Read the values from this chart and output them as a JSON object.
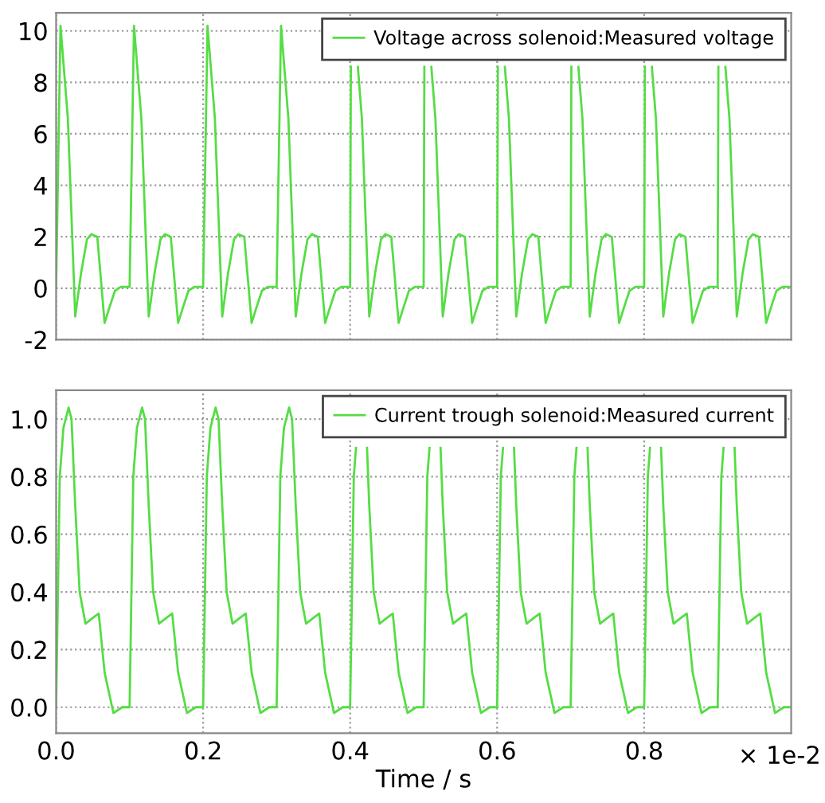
{
  "chart_data": [
    {
      "type": "line",
      "xlim": [
        0,
        1.0
      ],
      "ylim": [
        -2,
        10.7
      ],
      "xticks": [
        0,
        0.2,
        0.4,
        0.6,
        0.8
      ],
      "yticks": [
        -2,
        0,
        2,
        4,
        6,
        8,
        10
      ],
      "tick_labels": "y",
      "grid": true,
      "legend": "top right",
      "marker": "none",
      "line_style": "solid",
      "series": [
        {
          "name": "Voltage across solenoid:Measured voltage",
          "color": "#55dd44",
          "x": [
            0,
            0.006,
            0.016,
            0.026,
            0.034,
            0.042,
            0.048,
            0.056,
            0.066,
            0.072,
            0.08,
            0.088,
            0.098,
            0.1,
            0.106,
            0.116,
            0.126,
            0.134,
            0.142,
            0.148,
            0.156,
            0.166,
            0.172,
            0.18,
            0.188,
            0.198,
            0.2,
            0.206,
            0.216,
            0.226,
            0.234,
            0.242,
            0.248,
            0.256,
            0.266,
            0.272,
            0.28,
            0.288,
            0.298,
            0.3,
            0.306,
            0.316,
            0.326,
            0.334,
            0.342,
            0.348,
            0.356,
            0.366,
            0.372,
            0.38,
            0.388,
            0.398,
            0.4,
            0.401,
            0.406,
            0.4105,
            0.416,
            0.426,
            0.434,
            0.442,
            0.448,
            0.456,
            0.466,
            0.472,
            0.48,
            0.488,
            0.498,
            0.5,
            0.501,
            0.506,
            0.5105,
            0.516,
            0.526,
            0.534,
            0.542,
            0.548,
            0.556,
            0.566,
            0.572,
            0.58,
            0.588,
            0.598,
            0.6,
            0.601,
            0.606,
            0.6105,
            0.616,
            0.626,
            0.634,
            0.642,
            0.648,
            0.656,
            0.666,
            0.672,
            0.68,
            0.688,
            0.698,
            0.7,
            0.701,
            0.706,
            0.7105,
            0.716,
            0.726,
            0.734,
            0.742,
            0.748,
            0.756,
            0.766,
            0.772,
            0.78,
            0.788,
            0.798,
            0.8,
            0.801,
            0.806,
            0.8105,
            0.816,
            0.826,
            0.834,
            0.842,
            0.848,
            0.856,
            0.866,
            0.872,
            0.88,
            0.888,
            0.898,
            0.9,
            0.901,
            0.906,
            0.9105,
            0.916,
            0.926,
            0.934,
            0.942,
            0.948,
            0.956,
            0.966,
            0.972,
            0.98,
            0.988,
            0.998
          ],
          "values": [
            0,
            10.2,
            6.6,
            -1.1,
            0.6,
            1.9,
            2.1,
            2.0,
            -1.35,
            -0.8,
            -0.1,
            0.05,
            0.05,
            0.05,
            10.2,
            6.6,
            -1.1,
            0.6,
            1.9,
            2.1,
            2.0,
            -1.35,
            -0.8,
            -0.1,
            0.05,
            0.05,
            0.05,
            10.2,
            6.6,
            -1.1,
            0.6,
            1.9,
            2.1,
            2.0,
            -1.35,
            -0.8,
            -0.1,
            0.05,
            0.05,
            0.05,
            10.2,
            6.6,
            -1.1,
            0.6,
            1.9,
            2.1,
            2.0,
            -1.35,
            -0.8,
            -0.1,
            0.05,
            0.05,
            0.05,
            8.6,
            null,
            8.6,
            6.6,
            -1.1,
            0.6,
            1.9,
            2.1,
            2.0,
            -1.35,
            -0.8,
            -0.1,
            0.05,
            0.05,
            0.05,
            8.6,
            null,
            8.6,
            6.6,
            -1.1,
            0.6,
            1.9,
            2.1,
            2.0,
            -1.35,
            -0.8,
            -0.1,
            0.05,
            0.05,
            0.05,
            8.6,
            null,
            8.6,
            6.6,
            -1.1,
            0.6,
            1.9,
            2.1,
            2.0,
            -1.35,
            -0.8,
            -0.1,
            0.05,
            0.05,
            0.05,
            8.6,
            null,
            8.6,
            6.6,
            -1.1,
            0.6,
            1.9,
            2.1,
            2.0,
            -1.35,
            -0.8,
            -0.1,
            0.05,
            0.05,
            0.05,
            8.6,
            null,
            8.6,
            6.6,
            -1.1,
            0.6,
            1.9,
            2.1,
            2.0,
            -1.35,
            -0.8,
            -0.1,
            0.05,
            0.05,
            0.05,
            8.6,
            null,
            8.6,
            6.6,
            -1.1,
            0.6,
            1.9,
            2.1,
            2.0,
            -1.35,
            -0.8,
            -0.1,
            0.05,
            0.05
          ]
        }
      ]
    },
    {
      "type": "line",
      "xlabel": "Time / s",
      "annotations": [
        "× 1e-2"
      ],
      "xlim": [
        0,
        1.0
      ],
      "ylim": [
        -0.09,
        1.1
      ],
      "xticks": [
        {
          "value": 0,
          "label": "0.0"
        },
        0.2,
        0.4,
        0.6,
        0.8
      ],
      "yticks": [
        {
          "value": 0,
          "label": "0.0"
        },
        0.2,
        0.4,
        0.6,
        0.8,
        {
          "value": 1.0,
          "label": "1.0"
        }
      ],
      "grid": true,
      "legend": "top right",
      "marker": "none",
      "line_style": "solid",
      "series": [
        {
          "name": "Current trough solenoid:Measured current",
          "color": "#55dd44",
          "x": [
            0,
            0.005,
            0.01,
            0.017,
            0.021,
            0.026,
            0.032,
            0.04,
            0.05,
            0.058,
            0.066,
            0.078,
            0.09,
            0.099,
            0.1,
            0.105,
            0.11,
            0.117,
            0.121,
            0.126,
            0.132,
            0.14,
            0.15,
            0.158,
            0.166,
            0.178,
            0.19,
            0.199,
            0.2,
            0.205,
            0.21,
            0.217,
            0.221,
            0.226,
            0.232,
            0.24,
            0.25,
            0.258,
            0.266,
            0.278,
            0.29,
            0.299,
            0.3,
            0.305,
            0.31,
            0.317,
            0.321,
            0.326,
            0.332,
            0.34,
            0.35,
            0.358,
            0.366,
            0.378,
            0.39,
            0.399,
            0.4,
            0.405,
            0.408,
            0.417,
            0.423,
            0.426,
            0.432,
            0.44,
            0.45,
            0.458,
            0.466,
            0.478,
            0.49,
            0.499,
            0.5,
            0.505,
            0.508,
            0.517,
            0.523,
            0.526,
            0.532,
            0.54,
            0.55,
            0.558,
            0.566,
            0.578,
            0.59,
            0.599,
            0.6,
            0.605,
            0.608,
            0.617,
            0.623,
            0.626,
            0.632,
            0.64,
            0.65,
            0.658,
            0.666,
            0.678,
            0.69,
            0.699,
            0.7,
            0.705,
            0.708,
            0.717,
            0.723,
            0.726,
            0.732,
            0.74,
            0.75,
            0.758,
            0.766,
            0.778,
            0.79,
            0.799,
            0.8,
            0.805,
            0.808,
            0.817,
            0.823,
            0.826,
            0.832,
            0.84,
            0.85,
            0.858,
            0.866,
            0.878,
            0.89,
            0.899,
            0.9,
            0.905,
            0.908,
            0.917,
            0.923,
            0.926,
            0.932,
            0.94,
            0.95,
            0.958,
            0.966,
            0.978,
            0.99,
            0.999
          ],
          "values": [
            0,
            0.8,
            0.97,
            1.04,
            1.0,
            0.7,
            0.4,
            0.29,
            0.31,
            0.325,
            0.12,
            -0.02,
            0,
            0,
            0,
            0.8,
            0.97,
            1.04,
            1.0,
            0.7,
            0.4,
            0.29,
            0.31,
            0.325,
            0.12,
            -0.02,
            0,
            0,
            0,
            0.8,
            0.97,
            1.04,
            1.0,
            0.7,
            0.4,
            0.29,
            0.31,
            0.325,
            0.12,
            -0.02,
            0,
            0,
            0,
            0.8,
            0.97,
            1.04,
            1.0,
            0.7,
            0.4,
            0.29,
            0.31,
            0.325,
            0.12,
            -0.02,
            0,
            0,
            0,
            0.8,
            0.9,
            null,
            0.9,
            0.7,
            0.4,
            0.29,
            0.31,
            0.325,
            0.12,
            -0.02,
            0,
            0,
            0,
            0.8,
            0.9,
            null,
            0.9,
            0.7,
            0.4,
            0.29,
            0.31,
            0.325,
            0.12,
            -0.02,
            0,
            0,
            0,
            0.8,
            0.9,
            null,
            0.9,
            0.7,
            0.4,
            0.29,
            0.31,
            0.325,
            0.12,
            -0.02,
            0,
            0,
            0,
            0.8,
            0.9,
            null,
            0.9,
            0.7,
            0.4,
            0.29,
            0.31,
            0.325,
            0.12,
            -0.02,
            0,
            0,
            0,
            0.8,
            0.9,
            null,
            0.9,
            0.7,
            0.4,
            0.29,
            0.31,
            0.325,
            0.12,
            -0.02,
            0,
            0,
            0,
            0.8,
            0.9,
            null,
            0.9,
            0.7,
            0.4,
            0.29,
            0.31,
            0.325,
            0.12,
            -0.02,
            0,
            0
          ]
        }
      ]
    }
  ]
}
